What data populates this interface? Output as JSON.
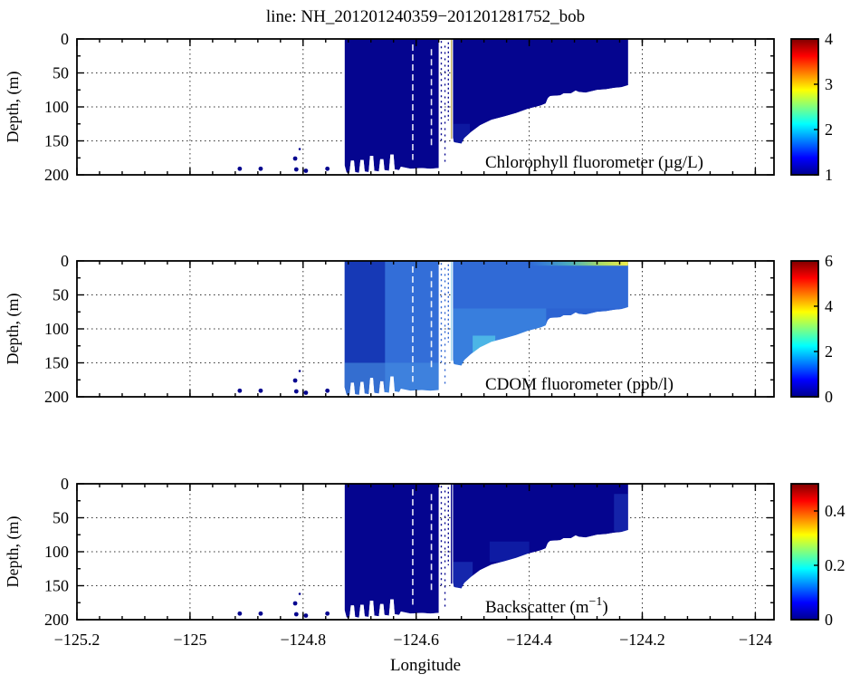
{
  "title": "line: NH_201201240359−201201281752_bob",
  "xlabel": "Longitude",
  "ylabel": "Depth, (m)",
  "xlim": [
    -125.2,
    -123.967
  ],
  "ylim": [
    0,
    200
  ],
  "x_tick_values": [
    -125.2,
    -125.0,
    -124.8,
    -124.6,
    -124.4,
    -124.2,
    -124.0
  ],
  "x_tick_labels": [
    "−125.2",
    "−125",
    "−124.8",
    "−124.6",
    "−124.4",
    "−124.2",
    "−124"
  ],
  "y_tick_values": [
    0,
    50,
    100,
    150,
    200
  ],
  "y_tick_labels": [
    "0",
    "50",
    "100",
    "150",
    "200"
  ],
  "colors": {
    "jet_stops": [
      [
        0,
        "#00008f"
      ],
      [
        0.125,
        "#0000ff"
      ],
      [
        0.375,
        "#00ffff"
      ],
      [
        0.625,
        "#ffff00"
      ],
      [
        0.875,
        "#ff0000"
      ],
      [
        1,
        "#800000"
      ]
    ],
    "navy": "#05058f",
    "grid": "#333333"
  },
  "chart_data": [
    {
      "type": "heatmap",
      "name": "chlorophyll",
      "label": "Chlorophyll fluorometer (µg/L)",
      "clim": [
        1,
        4
      ],
      "colorbar_tick_values": [
        1,
        2,
        3,
        4
      ],
      "colorbar_tick_labels": [
        "1",
        "2",
        "3",
        "4"
      ],
      "base_color": "#05058f",
      "approx_values": "section is uniformly at colormap minimum ≈1 µg/L (dark blue)",
      "layers": [
        {
          "lon0": -124.535,
          "lon1": -124.505,
          "d0": 125,
          "d1": 156,
          "color": "#1c3cc0",
          "opacity": 0.35
        }
      ],
      "trace_solid_color": "#bfae62",
      "trace_dash_color": "#05058f"
    },
    {
      "type": "heatmap",
      "name": "cdom",
      "label": "CDOM fluorometer (ppb/l)",
      "clim": [
        0,
        6
      ],
      "colorbar_tick_values": [
        0,
        2,
        4,
        6
      ],
      "colorbar_tick_labels": [
        "0",
        "2",
        "4",
        "6"
      ],
      "base_color": "#2c63d2",
      "approx_values": "mostly ≈1–2 ppb/l (blue); darker ≈0.8 strip at west end; surface streak rising to ≈4–5 (yellow-green) at the eastern end",
      "layers": [
        {
          "lon0": -124.727,
          "lon1": -124.655,
          "d0": 0,
          "d1": 200,
          "color": "#1434b2",
          "opacity": 0.9
        },
        {
          "lon0": -124.727,
          "lon1": -124.56,
          "d0": 150,
          "d1": 200,
          "color": "#4e9ae6",
          "opacity": 0.55
        },
        {
          "lon0": -124.655,
          "lon1": -124.56,
          "d0": 0,
          "d1": 150,
          "color": "#3b7de0",
          "opacity": 0.45
        },
        {
          "lon0": -124.535,
          "lon1": -124.37,
          "d0": 70,
          "d1": 160,
          "color": "#449ae8",
          "opacity": 0.5
        },
        {
          "lon0": -124.5,
          "lon1": -124.46,
          "d0": 110,
          "d1": 140,
          "color": "#55cdea",
          "opacity": 0.7
        },
        {
          "lon0": -124.535,
          "lon1": -124.225,
          "d0": 0,
          "d1": 70,
          "color": "#3573dc",
          "opacity": 0.45
        }
      ],
      "surface_streak": {
        "lon0": -124.4,
        "lon1": -124.225,
        "d0": 0,
        "d1": 7
      },
      "trace_solid_color": "#9fd4ef",
      "trace_dash_color": "#2c63d2"
    },
    {
      "type": "heatmap",
      "name": "backscatter",
      "label_pre": "Backscatter (m",
      "label_sup": "−1",
      "label_post": ")",
      "clim": [
        0,
        0.5
      ],
      "colorbar_tick_values": [
        0,
        0.2,
        0.4
      ],
      "colorbar_tick_labels": [
        "0",
        "0.2",
        "0.4"
      ],
      "base_color": "#05058f",
      "approx_values": "section is uniformly near 0 m−1 (dark blue) with faint slightly higher patches near the seabed",
      "layers": [
        {
          "lon0": -124.535,
          "lon1": -124.5,
          "d0": 115,
          "d1": 155,
          "color": "#2a4fd0",
          "opacity": 0.45
        },
        {
          "lon0": -124.47,
          "lon1": -124.4,
          "d0": 85,
          "d1": 115,
          "color": "#1c3cc0",
          "opacity": 0.4
        },
        {
          "lon0": -124.25,
          "lon1": -124.225,
          "d0": 15,
          "d1": 70,
          "color": "#2a4fd0",
          "opacity": 0.4
        }
      ],
      "trace_solid_color": "#05058f",
      "trace_dash_color": "#05058f"
    }
  ],
  "track": {
    "left_blob_profile": [
      [
        -124.7265,
        186
      ],
      [
        -124.723,
        197
      ],
      [
        -124.718,
        197
      ],
      [
        -124.7155,
        179
      ],
      [
        -124.71,
        179
      ],
      [
        -124.708,
        196
      ],
      [
        -124.701,
        197
      ],
      [
        -124.6985,
        178
      ],
      [
        -124.693,
        178
      ],
      [
        -124.691,
        195
      ],
      [
        -124.684,
        196
      ],
      [
        -124.6815,
        172
      ],
      [
        -124.676,
        172
      ],
      [
        -124.674,
        194
      ],
      [
        -124.666,
        195
      ],
      [
        -124.6635,
        177
      ],
      [
        -124.658,
        177
      ],
      [
        -124.656,
        193
      ],
      [
        -124.648,
        194
      ],
      [
        -124.6455,
        170
      ],
      [
        -124.64,
        170
      ],
      [
        -124.638,
        192
      ],
      [
        -124.63,
        193
      ],
      [
        -124.627,
        188
      ],
      [
        -124.61,
        191
      ],
      [
        -124.59,
        190
      ],
      [
        -124.575,
        191
      ],
      [
        -124.56,
        190
      ]
    ],
    "right_blob_profile": [
      [
        -124.535,
        145
      ],
      [
        -124.533,
        152
      ],
      [
        -124.52,
        154
      ],
      [
        -124.515,
        146
      ],
      [
        -124.503,
        137
      ],
      [
        -124.487,
        127
      ],
      [
        -124.467,
        119
      ],
      [
        -124.444,
        114
      ],
      [
        -124.423,
        109
      ],
      [
        -124.403,
        103
      ],
      [
        -124.38,
        98
      ],
      [
        -124.371,
        95
      ],
      [
        -124.367,
        87
      ],
      [
        -124.363,
        84
      ],
      [
        -124.345,
        83
      ],
      [
        -124.339,
        80
      ],
      [
        -124.326,
        80
      ],
      [
        -124.318,
        76
      ],
      [
        -124.312,
        78
      ],
      [
        -124.3,
        79
      ],
      [
        -124.28,
        75
      ],
      [
        -124.264,
        74
      ],
      [
        -124.25,
        72
      ],
      [
        -124.237,
        71
      ],
      [
        -124.225,
        68
      ]
    ],
    "white_gaps": [
      {
        "lon": -124.606,
        "d0": 8,
        "d1": 178
      },
      {
        "lon": -124.573,
        "d0": 15,
        "d1": 160
      }
    ],
    "gap_traces": [
      {
        "lon": -124.5555,
        "d0": 3,
        "d1": 150,
        "dash": "2 4"
      },
      {
        "lon": -124.549,
        "d0": 10,
        "d1": 185,
        "dash": "2 5"
      },
      {
        "lon": -124.543,
        "d0": 5,
        "d1": 120,
        "dash": "2 3"
      }
    ],
    "gap_solid_trace": {
      "lon": -124.5375,
      "d0": 1,
      "d1": 147
    },
    "deep_dots": [
      {
        "lon": -124.912,
        "depth": 191,
        "r": 2.4
      },
      {
        "lon": -124.875,
        "depth": 191,
        "r": 2.4
      },
      {
        "lon": -124.814,
        "depth": 176,
        "r": 2.4
      },
      {
        "lon": -124.812,
        "depth": 192,
        "r": 2.4
      },
      {
        "lon": -124.795,
        "depth": 194,
        "r": 2.4
      },
      {
        "lon": -124.757,
        "depth": 191,
        "r": 2.4
      },
      {
        "lon": -124.806,
        "depth": 162,
        "r": 1.3
      }
    ]
  }
}
